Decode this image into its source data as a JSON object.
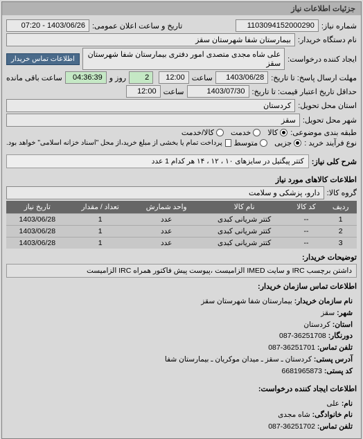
{
  "panel": {
    "title": "جزئیات اطلاعات نیاز"
  },
  "fields": {
    "labels": {
      "request_no": "شماره نیاز:",
      "public_date": "تاریخ و ساعت اعلان عمومی:",
      "device_name": "نام دستگاه خریدار:",
      "requester": "ایجاد کننده درخواست:",
      "contact_btn": "اطلاعات تماس خریدار",
      "deadline": "مهلت ارسال پاسخ: تا تاریخ:",
      "at_time": "ساعت",
      "min_validity": "حداقل تاریخ اعتبار قیمت: تا تاریخ:",
      "delivery_province": "استان محل تحویل:",
      "delivery_city": "شهر محل تحویل:",
      "classification": "طبقه بندی موضوعی:",
      "goods": "کالا",
      "service": "خدمت",
      "goods_service": "کالا/خدمت",
      "buy_process": "نوع فرآیند خرید :",
      "partial": "جزیی",
      "medium": "متوسط",
      "buy_process_note": "پرداخت تمام یا بخشی از مبلغ خرید،از محل \"اسناد خزانه اسلامی\" خواهد بود.",
      "remaining_days": "روز و",
      "remaining_time": "ساعت باقی مانده"
    },
    "values": {
      "request_no": "1103094152000290",
      "public_date": "1403/06/26 - 07:20",
      "device_name": "بیمارستان شفا شهرستان سقز",
      "requester": "علی شاه مجدی متصدی امور دفتری بیمارستان شفا شهرستان سقز",
      "deadline_date": "1403/06/28",
      "deadline_time": "12:00",
      "validity_date": "1403/07/30",
      "validity_time": "12:00",
      "delivery_province": "کردستان",
      "delivery_city": "سقز",
      "remaining_days": "2",
      "remaining_time": "04:36:39"
    }
  },
  "desc_title_label": "شرح کلی نیاز:",
  "desc_title": "کتتر پیگتیل در سایزهای ۱۰ ، ۱۲ ، ۱۴ هر کدام 1 عدد",
  "goods_section_title": "اطلاعات کالاهای مورد نیاز",
  "goods_group_label": "گروه کالا:",
  "goods_group": "دارو، پزشکی و سلامت",
  "table": {
    "headers": [
      "ردیف",
      "کد کالا",
      "نام کالا",
      "واحد شمارش",
      "تعداد / مقدار",
      "تاریخ نیاز"
    ],
    "rows": [
      [
        "1",
        "--",
        "کتتر شریانی کبدی",
        "عدد",
        "1",
        "1403/06/28"
      ],
      [
        "2",
        "--",
        "کتتر شریانی کبدی",
        "عدد",
        "1",
        "1403/06/28"
      ],
      [
        "3",
        "--",
        "کتتر شریانی کبدی",
        "عدد",
        "1",
        "1403/06/28"
      ]
    ]
  },
  "buyer_note_label": "توضیحات خریدار:",
  "buyer_note": "داشتن برچسب IRC و سایت IMED الزامیست ،پیوست پیش فاکتور همراه IRC الزامیست",
  "contact_section_title": "اطلاعات تماس سازمان خریدار:",
  "contact": {
    "labels": {
      "org": "نام سازمان خریدار:",
      "city": "شهر:",
      "province": "استان:",
      "fax": "دورنگار:",
      "phone": "تلفن تماس:",
      "addr": "آدرس پستی:",
      "postal": "کد پستی:"
    },
    "org": "بیمارستان شفا شهرستان سقز",
    "city": "سقز",
    "province": "کردستان",
    "fax": "36251708-087",
    "phone": "36251701-087",
    "addr": "کردستان ـ سقز ـ میدان موکریان ـ بیمارستان شفا",
    "postal": "6681965873"
  },
  "creator_section_title": "اطلاعات ایجاد کننده درخواست:",
  "creator": {
    "labels": {
      "name": "نام:",
      "family": "نام خانوادگی:",
      "phone": "تلفن تماس:"
    },
    "name": "علی",
    "family": "شاه مجدی",
    "phone": "36251702-087"
  }
}
